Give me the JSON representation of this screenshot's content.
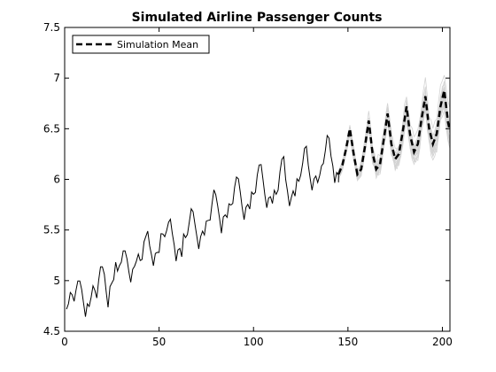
{
  "chart_data": {
    "type": "line",
    "title": "Simulated Airline Passenger Counts",
    "xlabel": "",
    "ylabel": "",
    "xlim": [
      0,
      204
    ],
    "ylim": [
      4.5,
      7.5
    ],
    "xticks": [
      0,
      50,
      100,
      150,
      200
    ],
    "xtick_labels": [
      "0",
      "50",
      "100",
      "150",
      "200"
    ],
    "yticks": [
      4.5,
      5,
      5.5,
      6,
      6.5,
      7,
      7.5
    ],
    "ytick_labels": [
      "4.5",
      "5",
      "5.5",
      "6",
      "6.5",
      "7",
      "7.5"
    ],
    "grid": false,
    "legend": {
      "position": "top-left",
      "entries": [
        "Simulation Mean"
      ]
    },
    "colors": {
      "observed": "#000000",
      "simulations": "#d3d3d3",
      "mean": "#000000"
    },
    "observed": {
      "x_start": 1,
      "values": [
        4.718,
        4.771,
        4.883,
        4.86,
        4.796,
        4.905,
        4.997,
        4.997,
        4.913,
        4.779,
        4.644,
        4.771,
        4.745,
        4.836,
        4.949,
        4.905,
        4.828,
        5.004,
        5.136,
        5.136,
        5.063,
        4.89,
        4.736,
        4.942,
        4.977,
        5.011,
        5.182,
        5.094,
        5.147,
        5.182,
        5.293,
        5.293,
        5.215,
        5.088,
        4.984,
        5.112,
        5.142,
        5.193,
        5.263,
        5.199,
        5.209,
        5.384,
        5.438,
        5.489,
        5.342,
        5.252,
        5.147,
        5.268,
        5.279,
        5.278,
        5.464,
        5.46,
        5.434,
        5.493,
        5.576,
        5.606,
        5.468,
        5.352,
        5.193,
        5.303,
        5.318,
        5.236,
        5.46,
        5.425,
        5.455,
        5.576,
        5.71,
        5.68,
        5.557,
        5.434,
        5.313,
        5.434,
        5.489,
        5.451,
        5.587,
        5.595,
        5.598,
        5.753,
        5.897,
        5.849,
        5.743,
        5.613,
        5.468,
        5.628,
        5.649,
        5.624,
        5.759,
        5.746,
        5.762,
        5.924,
        6.023,
        6.004,
        5.872,
        5.724,
        5.602,
        5.724,
        5.753,
        5.707,
        5.875,
        5.852,
        5.872,
        6.045,
        6.142,
        6.146,
        6.001,
        5.849,
        5.72,
        5.817,
        5.829,
        5.762,
        5.892,
        5.852,
        5.894,
        6.075,
        6.196,
        6.225,
        6.001,
        5.883,
        5.737,
        5.82,
        5.886,
        5.835,
        6.006,
        5.981,
        6.04,
        6.157,
        6.306,
        6.326,
        6.138,
        6.009,
        5.892,
        6.004,
        6.033,
        5.969,
        6.038,
        6.133,
        6.157,
        6.282,
        6.433,
        6.407,
        6.23,
        6.133,
        5.966,
        6.068
      ],
      "tail": [
        [
          145,
          6.04
        ],
        [
          145,
          5.97
        ]
      ]
    },
    "simulation_mean": {
      "x": [
        145,
        147,
        149,
        151,
        153,
        155,
        157,
        159,
        161,
        163,
        165,
        167,
        169,
        171,
        173,
        175,
        177,
        179,
        181,
        183,
        185,
        187,
        189,
        191,
        193,
        195,
        197,
        199,
        201,
        203,
        204
      ],
      "values": [
        6.05,
        6.14,
        6.3,
        6.5,
        6.25,
        6.05,
        6.1,
        6.32,
        6.58,
        6.26,
        6.1,
        6.15,
        6.4,
        6.65,
        6.35,
        6.2,
        6.25,
        6.47,
        6.72,
        6.43,
        6.27,
        6.35,
        6.6,
        6.82,
        6.5,
        6.35,
        6.45,
        6.72,
        6.88,
        6.56,
        6.48
      ]
    },
    "simulations": {
      "count": 20,
      "x_start": 145,
      "x_end": 204,
      "spread_start": 0.05,
      "spread_end": 0.4
    }
  }
}
